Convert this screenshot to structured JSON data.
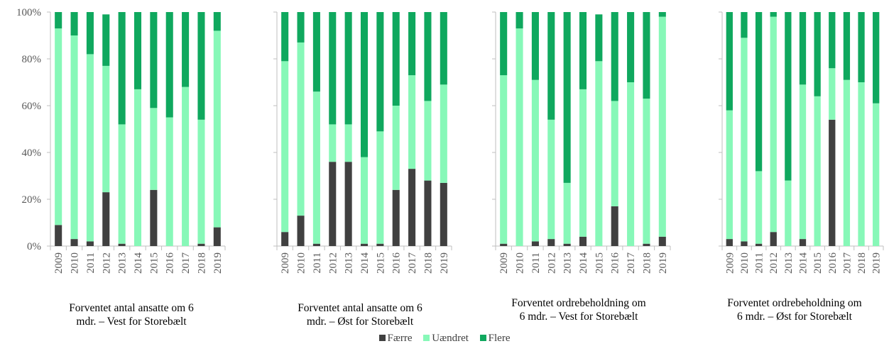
{
  "chart_data": [
    {
      "type": "bar",
      "stacked": "percent",
      "title": "Forventet antal ansatte om 6 mdr. – Vest for Storebælt",
      "title_lines": [
        "Forventet antal ansatte om 6",
        "mdr. – Vest for Storebælt"
      ],
      "categories": [
        "2009",
        "2010",
        "2011",
        "2012",
        "2013",
        "2014",
        "2015",
        "2016",
        "2017",
        "2018",
        "2019"
      ],
      "series": [
        {
          "name": "Færre",
          "values": [
            9,
            3,
            2,
            23,
            1,
            0,
            24,
            0,
            0,
            1,
            8
          ]
        },
        {
          "name": "Uændret",
          "values": [
            84,
            87,
            80,
            54,
            51,
            67,
            35,
            55,
            68,
            53,
            84
          ]
        },
        {
          "name": "Flere",
          "values": [
            7,
            10,
            18,
            22,
            48,
            33,
            41,
            45,
            32,
            46,
            8
          ]
        }
      ],
      "ylim": [
        0,
        100
      ],
      "yticks": [
        "0%",
        "20%",
        "40%",
        "60%",
        "80%",
        "100%"
      ]
    },
    {
      "type": "bar",
      "stacked": "percent",
      "title": "Forventet antal ansatte om 6 mdr. – Øst for Storebælt",
      "title_lines": [
        "Forventet antal ansatte om 6",
        "mdr. – Øst for Storebælt"
      ],
      "categories": [
        "2009",
        "2010",
        "2011",
        "2012",
        "2013",
        "2014",
        "2015",
        "2016",
        "2017",
        "2018",
        "2019"
      ],
      "series": [
        {
          "name": "Færre",
          "values": [
            6,
            13,
            1,
            36,
            36,
            1,
            1,
            24,
            33,
            28,
            27
          ]
        },
        {
          "name": "Uændret",
          "values": [
            73,
            74,
            65,
            16,
            16,
            37,
            48,
            36,
            40,
            34,
            42
          ]
        },
        {
          "name": "Flere",
          "values": [
            21,
            13,
            34,
            48,
            48,
            62,
            51,
            40,
            27,
            38,
            31
          ]
        }
      ],
      "ylim": [
        0,
        100
      ]
    },
    {
      "type": "bar",
      "stacked": "percent",
      "title": "Forventet ordrebeholdning om 6 mdr. – Vest for Storebælt",
      "title_lines": [
        "Forventet ordrebeholdning om",
        "6 mdr. – Vest for Storebælt"
      ],
      "categories": [
        "2009",
        "2010",
        "2011",
        "2012",
        "2013",
        "2014",
        "2015",
        "2016",
        "2017",
        "2018",
        "2019"
      ],
      "series": [
        {
          "name": "Færre",
          "values": [
            1,
            0,
            2,
            3,
            1,
            4,
            0,
            17,
            0,
            1,
            4
          ]
        },
        {
          "name": "Uændret",
          "values": [
            72,
            93,
            69,
            51,
            26,
            63,
            79,
            45,
            70,
            62,
            94
          ]
        },
        {
          "name": "Flere",
          "values": [
            27,
            7,
            29,
            46,
            73,
            33,
            20,
            38,
            30,
            37,
            2
          ]
        }
      ],
      "ylim": [
        0,
        100
      ]
    },
    {
      "type": "bar",
      "stacked": "percent",
      "title": "Forventet ordrebeholdning om 6 mdr. – Øst for Storebælt",
      "title_lines": [
        "Forventet ordrebeholdning om",
        "6 mdr. – Øst for Storebælt"
      ],
      "categories": [
        "2009",
        "2010",
        "2011",
        "2012",
        "2013",
        "2014",
        "2015",
        "2016",
        "2017",
        "2018",
        "2019"
      ],
      "series": [
        {
          "name": "Færre",
          "values": [
            3,
            2,
            1,
            6,
            0,
            3,
            0,
            54,
            0,
            0,
            0
          ]
        },
        {
          "name": "Uændret",
          "values": [
            55,
            87,
            31,
            92,
            28,
            66,
            64,
            22,
            71,
            70,
            61
          ]
        },
        {
          "name": "Flere",
          "values": [
            42,
            11,
            68,
            2,
            72,
            31,
            36,
            24,
            29,
            30,
            39
          ]
        }
      ],
      "ylim": [
        0,
        100
      ]
    }
  ],
  "legend": {
    "position": "bottom",
    "items": [
      {
        "label": "Færre",
        "color": "#404040"
      },
      {
        "label": "Uændret",
        "color": "#87f8b8"
      },
      {
        "label": "Flere",
        "color": "#0fa85e"
      }
    ]
  },
  "colors": {
    "Færre": "#404040",
    "Uændret": "#87f8b8",
    "Flere": "#0fa85e",
    "axis": "#bfbfbf",
    "tick_text": "#595959"
  }
}
